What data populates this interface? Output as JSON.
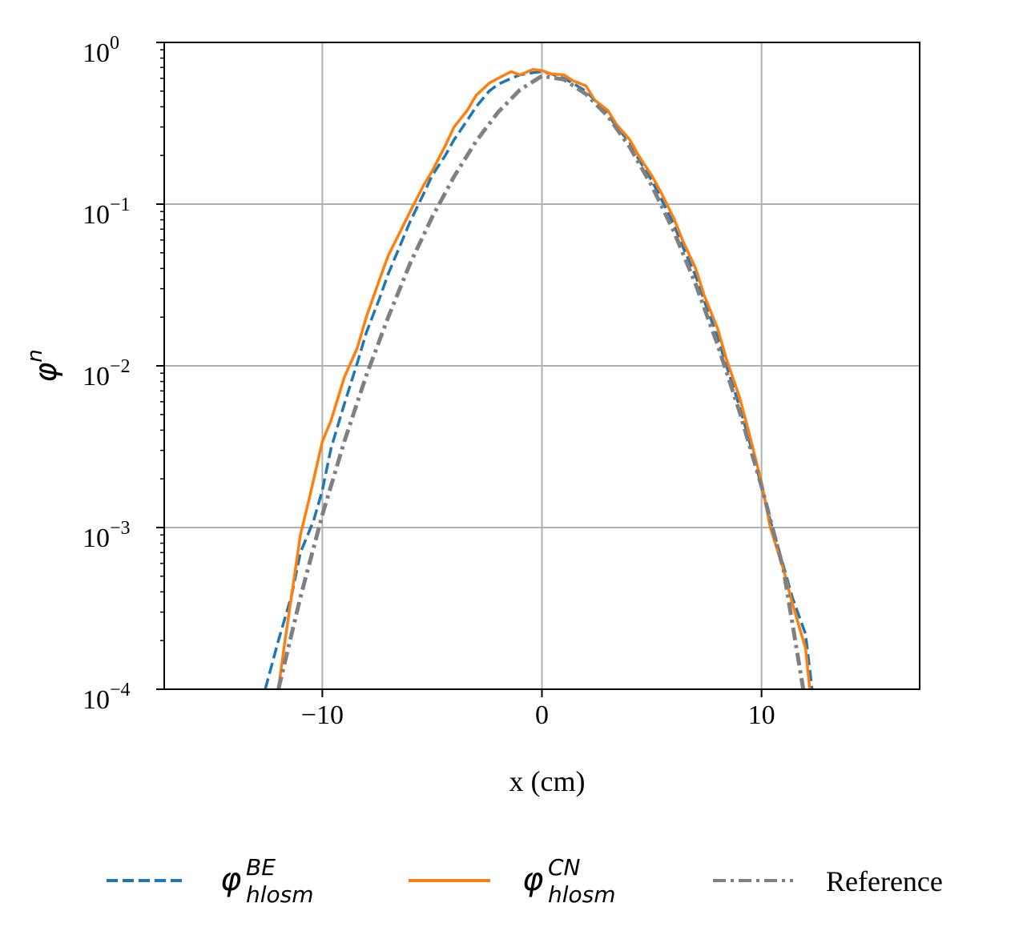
{
  "chart_data": {
    "type": "line",
    "xlabel": "x (cm)",
    "ylabel": {
      "base": "φ",
      "sup": "n"
    },
    "xlim": [
      -17.2,
      17.2
    ],
    "ylim": [
      0.0001,
      1
    ],
    "yscale": "log",
    "grid": true,
    "xticks": [
      -10,
      0,
      10
    ],
    "xtick_labels": [
      "−10",
      "0",
      "10"
    ],
    "yticks": [
      0.0001,
      0.001,
      0.01,
      0.1,
      1
    ],
    "ytick_labels": [
      {
        "base": "10",
        "exp": "−4"
      },
      {
        "base": "10",
        "exp": "−3"
      },
      {
        "base": "10",
        "exp": "−2"
      },
      {
        "base": "10",
        "exp": "−1"
      },
      {
        "base": "10",
        "exp": "0"
      }
    ],
    "legend_position": "bottom, below plot",
    "series": [
      {
        "name": "φ_hlosm^BE",
        "label": {
          "base": "φ",
          "sup": "BE",
          "sub": "hlosm"
        },
        "color": "#1f77b4",
        "style": "dashed",
        "x": [
          -12.6,
          -12.0,
          -11.4,
          -11.0,
          -10.4,
          -10.0,
          -9.6,
          -9.0,
          -8.4,
          -8.0,
          -7.4,
          -7.0,
          -6.4,
          -6.0,
          -5.4,
          -5.0,
          -4.4,
          -4.0,
          -3.4,
          -3.0,
          -2.4,
          -2.0,
          -1.4,
          -1.0,
          -0.4,
          0.0,
          0.4,
          1.0,
          1.4,
          2.0,
          2.4,
          3.0,
          3.4,
          4.0,
          4.4,
          5.0,
          5.4,
          6.0,
          6.4,
          7.0,
          7.4,
          8.0,
          8.4,
          9.0,
          9.4,
          10.0,
          10.4,
          11.0,
          11.4,
          12.0,
          12.3
        ],
        "y": [
          0.0001,
          0.0002,
          0.00038,
          0.0007,
          0.0011,
          0.0017,
          0.0031,
          0.0058,
          0.0105,
          0.016,
          0.026,
          0.037,
          0.058,
          0.078,
          0.115,
          0.15,
          0.2,
          0.25,
          0.33,
          0.4,
          0.5,
          0.55,
          0.6,
          0.63,
          0.65,
          0.66,
          0.64,
          0.6,
          0.56,
          0.5,
          0.44,
          0.36,
          0.3,
          0.24,
          0.19,
          0.14,
          0.11,
          0.075,
          0.055,
          0.036,
          0.025,
          0.015,
          0.01,
          0.0056,
          0.0036,
          0.0018,
          0.0011,
          0.00058,
          0.00037,
          0.00022,
          0.0001
        ]
      },
      {
        "name": "φ_hlosm^CN",
        "label": {
          "base": "φ",
          "sup": "CN",
          "sub": "hlosm"
        },
        "color": "#ff7f0e",
        "style": "solid",
        "x": [
          -12.0,
          -11.7,
          -11.0,
          -10.6,
          -10.0,
          -9.6,
          -9.0,
          -8.4,
          -8.0,
          -7.4,
          -7.0,
          -6.4,
          -6.0,
          -5.4,
          -5.0,
          -4.4,
          -4.0,
          -3.4,
          -3.0,
          -2.4,
          -2.0,
          -1.4,
          -1.0,
          -0.4,
          0.0,
          0.4,
          1.0,
          1.4,
          2.0,
          2.4,
          3.0,
          3.4,
          4.0,
          4.4,
          5.0,
          5.4,
          6.0,
          6.4,
          7.0,
          7.4,
          8.0,
          8.4,
          9.0,
          9.4,
          10.0,
          10.4,
          11.0,
          11.4,
          12.0,
          12.2
        ],
        "y": [
          0.0001,
          0.0002,
          0.0009,
          0.0015,
          0.0034,
          0.0046,
          0.0085,
          0.013,
          0.02,
          0.034,
          0.048,
          0.07,
          0.09,
          0.13,
          0.16,
          0.23,
          0.3,
          0.38,
          0.47,
          0.56,
          0.6,
          0.66,
          0.63,
          0.68,
          0.67,
          0.64,
          0.63,
          0.58,
          0.54,
          0.44,
          0.38,
          0.31,
          0.25,
          0.2,
          0.15,
          0.12,
          0.082,
          0.06,
          0.04,
          0.027,
          0.017,
          0.011,
          0.0064,
          0.004,
          0.0019,
          0.001,
          0.00055,
          0.00034,
          0.00018,
          0.0001
        ]
      },
      {
        "name": "Reference",
        "label": {
          "base": "Reference"
        },
        "color": "#808080",
        "style": "dashdot",
        "x": [
          -12.0,
          -11.0,
          -10.0,
          -9.0,
          -8.0,
          -7.0,
          -6.0,
          -5.0,
          -4.0,
          -3.0,
          -2.0,
          -1.0,
          0.0,
          1.0,
          2.0,
          3.0,
          4.0,
          5.0,
          6.0,
          7.0,
          8.0,
          9.0,
          10.0,
          11.0,
          11.9
        ],
        "y": [
          0.0001,
          0.00037,
          0.0012,
          0.0034,
          0.0087,
          0.02,
          0.043,
          0.083,
          0.148,
          0.245,
          0.37,
          0.51,
          0.62,
          0.59,
          0.48,
          0.35,
          0.225,
          0.13,
          0.068,
          0.032,
          0.0135,
          0.0052,
          0.0018,
          0.00055,
          0.0001
        ]
      }
    ]
  }
}
